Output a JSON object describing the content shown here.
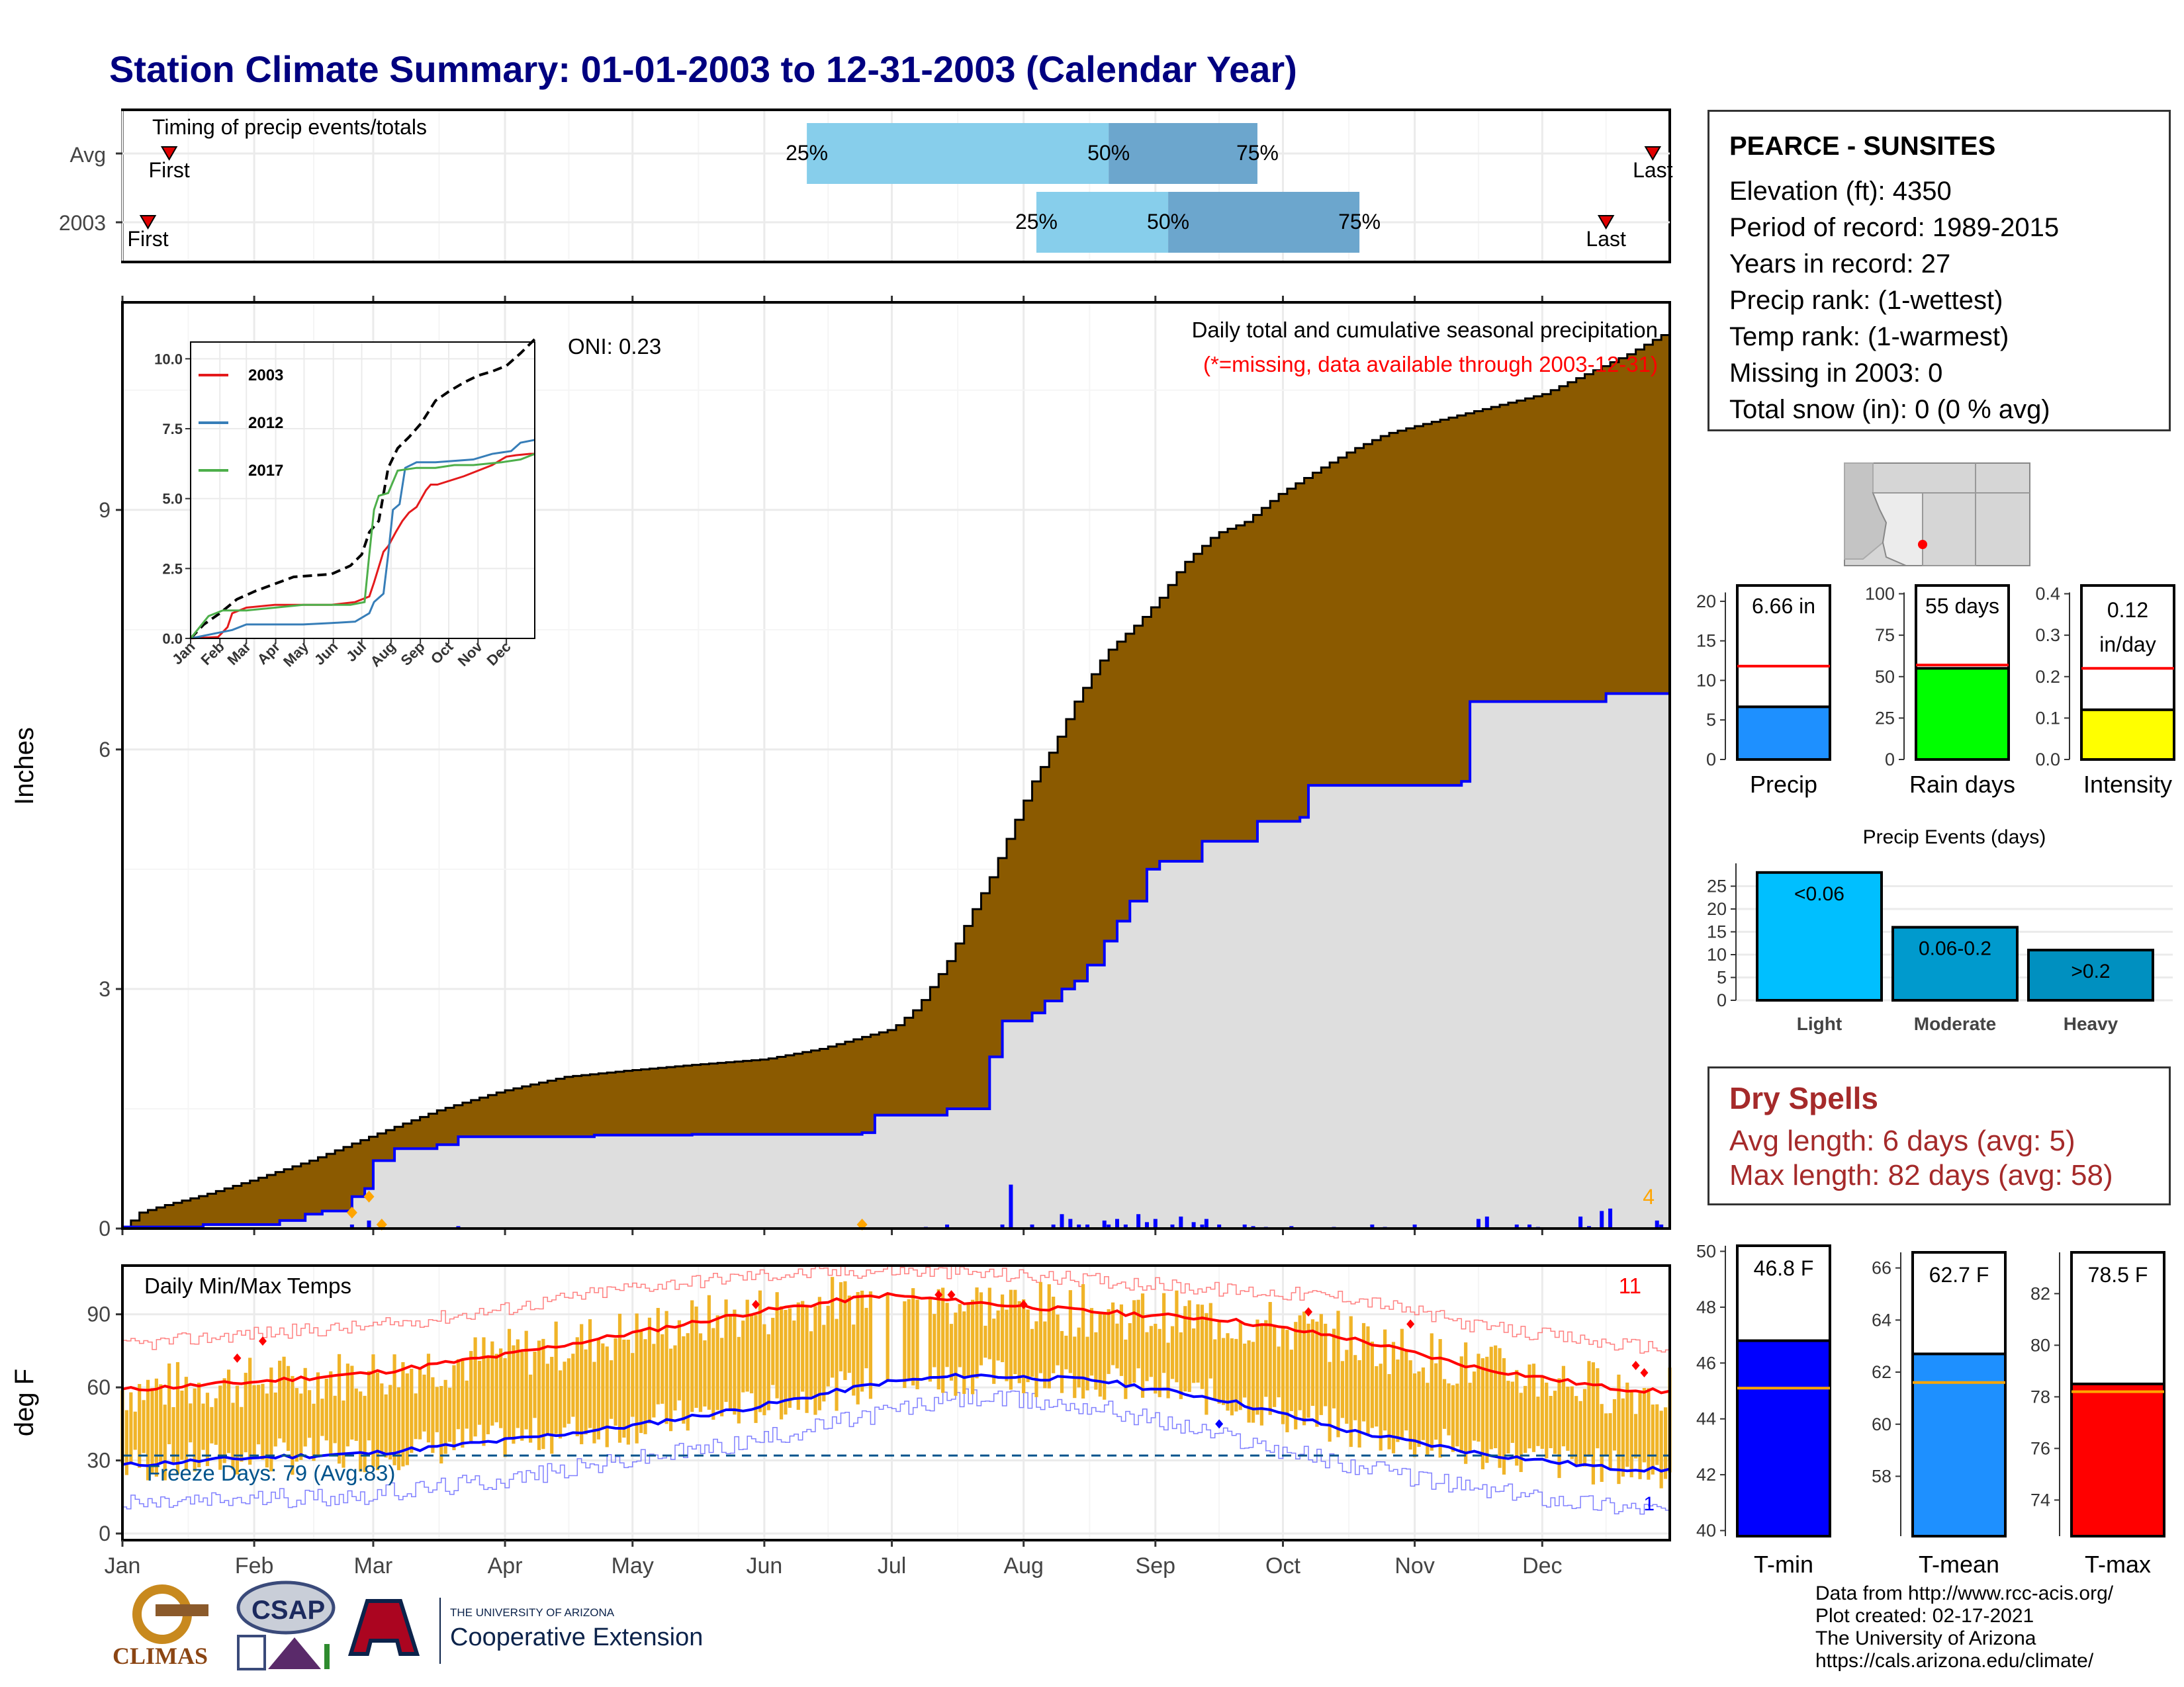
{
  "title": "Station Climate Summary: 01-01-2003 to 12-31-2003 (Calendar Year)",
  "timing_panel": {
    "label": "Timing of precip events/totals",
    "rows": [
      {
        "name": "Avg",
        "first_label": "First",
        "last_label": "Last",
        "first_doy": 12,
        "last_doy": 361,
        "p25_doy": 162,
        "p50_doy": 233,
        "p75_doy": 268,
        "p25_label": "25%",
        "p50_label": "50%",
        "p75_label": "75%"
      },
      {
        "name": "2003",
        "first_label": "First",
        "last_label": "Last",
        "first_doy": 7,
        "last_doy": 350,
        "p25_doy": 216,
        "p50_doy": 247,
        "p75_doy": 292,
        "p25_label": "25%",
        "p50_label": "50%",
        "p75_label": "75%"
      }
    ]
  },
  "precip_panel": {
    "ylabel": "Inches",
    "yticks": [
      0,
      3,
      6,
      9
    ],
    "heading": "Daily total and cumulative seasonal precipitation",
    "missing_note": "(*=missing, data available through 2003-12-31)",
    "oni": "ONI: 0.23",
    "corner_count": "4",
    "colors": {
      "avg_fill": "#8B5A00",
      "year_fill": "#DEDEDE",
      "year_line": "#0000FF",
      "bars": "#0000FF",
      "missing": "#FFA500"
    }
  },
  "inset": {
    "yticks": [
      "0.0",
      "2.5",
      "5.0",
      "7.5",
      "10.0"
    ],
    "months": [
      "Jan",
      "Feb",
      "Mar",
      "Apr",
      "May",
      "Jun",
      "Jul",
      "Aug",
      "Sep",
      "Oct",
      "Nov",
      "Dec"
    ],
    "legend": [
      {
        "name": "2003",
        "color": "#E41A1C"
      },
      {
        "name": "2012",
        "color": "#377EB8"
      },
      {
        "name": "2017",
        "color": "#4DAF4A"
      }
    ]
  },
  "temp_panel": {
    "ylabel": "deg F",
    "heading": "Daily Min/Max Temps",
    "yticks": [
      0,
      30,
      60,
      90
    ],
    "freeze_label": "Freeze Days: 79 (Avg:83)",
    "red_count": "11",
    "blue_count": "1",
    "months": [
      "Jan",
      "Feb",
      "Mar",
      "Apr",
      "May",
      "Jun",
      "Jul",
      "Aug",
      "Sep",
      "Oct",
      "Nov",
      "Dec"
    ]
  },
  "station": {
    "name": "PEARCE - SUNSITES",
    "lines": [
      "Elevation (ft): 4350",
      "Period of record: 1989-2015",
      "Years in record: 27",
      "Precip rank:  (1-wettest)",
      "Temp rank:  (1-warmest)",
      "Missing in 2003: 0",
      "Total snow (in): 0 (0 % avg)"
    ]
  },
  "summary_bars": [
    {
      "label": "Precip",
      "value_text": "6.66 in",
      "value": 6.66,
      "avg": 11.8,
      "max": 22,
      "ticks": [
        0,
        5,
        10,
        15,
        20
      ],
      "color": "#1E90FF"
    },
    {
      "label": "Rain days",
      "value_text": "55 days",
      "value": 55,
      "avg": 57,
      "max": 105,
      "ticks": [
        0,
        25,
        50,
        75,
        100
      ],
      "color": "#00FF00"
    },
    {
      "label": "Intensity",
      "value_text": "0.12 in/day",
      "value": 0.12,
      "avg": 0.22,
      "max": 0.42,
      "ticks": [
        "0.0",
        "0.1",
        "0.2",
        "0.3",
        "0.4"
      ],
      "color": "#FFFF00"
    }
  ],
  "precip_events": {
    "title": "Precip Events (days)",
    "yticks": [
      0,
      5,
      10,
      15,
      20,
      25
    ],
    "categories": [
      "Light",
      "Moderate",
      "Heavy"
    ],
    "bar_labels": [
      "<0.06",
      "0.06-0.2",
      ">0.2"
    ],
    "values": [
      28,
      16,
      11
    ],
    "colors": [
      "#00BFFF",
      "#009ACD",
      "#0090C0"
    ]
  },
  "dry_spells": {
    "title": "Dry Spells",
    "avg_line": "Avg length: 6 days (avg: 5)",
    "max_line": "Max length: 82 days (avg: 58)"
  },
  "temp_bars": [
    {
      "label": "T-min",
      "value_text": "46.8 F",
      "value": 46.8,
      "avg": 45.1,
      "ticks": [
        40,
        42,
        44,
        46,
        48,
        50
      ],
      "min": 39.8,
      "max": 50.2,
      "color": "#0000FF"
    },
    {
      "label": "T-mean",
      "value_text": "62.7 F",
      "value": 62.7,
      "avg": 61.6,
      "ticks": [
        58,
        60,
        62,
        64,
        66
      ],
      "min": 55.7,
      "max": 66.6,
      "color": "#1E90FF"
    },
    {
      "label": "T-max",
      "value_text": "78.5 F",
      "value": 78.5,
      "avg": 78.2,
      "ticks": [
        74,
        76,
        78,
        80,
        82
      ],
      "min": 72.6,
      "max": 83.6,
      "color": "#FF0000"
    }
  ],
  "credits": [
    "Data from http://www.rcc-acis.org/",
    "Plot created: 02-17-2021",
    "The University of Arizona",
    "https://cals.arizona.edu/climate/"
  ],
  "logos": {
    "climas": "CLIMAS",
    "csap": "CSAP",
    "ua_small": "THE UNIVERSITY OF ARIZONA",
    "ua_big": "Cooperative Extension"
  },
  "chart_data": [
    {
      "type": "area",
      "title": "Daily total and cumulative seasonal precipitation",
      "ylabel": "Inches",
      "ylim": [
        0,
        11.6
      ],
      "series": [
        {
          "name": "Avg",
          "x_doy": [
            1,
            5,
            10,
            20,
            31,
            45,
            59,
            75,
            90,
            105,
            120,
            135,
            152,
            165,
            175,
            182,
            188,
            195,
            200,
            205,
            210,
            215,
            220,
            225,
            232,
            240,
            245,
            250,
            258,
            265,
            273,
            282,
            290,
            298,
            305,
            320,
            335,
            345,
            355,
            365
          ],
          "y": [
            0.0,
            0.2,
            0.28,
            0.42,
            0.6,
            0.85,
            1.15,
            1.48,
            1.72,
            1.9,
            1.98,
            2.05,
            2.12,
            2.25,
            2.4,
            2.5,
            2.78,
            3.35,
            3.9,
            4.4,
            5.0,
            5.6,
            6.05,
            6.6,
            7.2,
            7.6,
            7.9,
            8.3,
            8.7,
            8.85,
            9.2,
            9.5,
            9.75,
            9.95,
            10.05,
            10.25,
            10.45,
            10.7,
            10.95,
            11.25
          ]
        },
        {
          "name": "2003",
          "x_doy": [
            1,
            20,
            32,
            38,
            44,
            48,
            55,
            58,
            60,
            65,
            75,
            80,
            112,
            135,
            160,
            175,
            178,
            195,
            205,
            208,
            215,
            218,
            222,
            225,
            228,
            232,
            235,
            238,
            242,
            245,
            255,
            268,
            278,
            280,
            302,
            316,
            318,
            350,
            365
          ],
          "y": [
            0.02,
            0.05,
            0.05,
            0.1,
            0.18,
            0.22,
            0.4,
            0.5,
            0.85,
            1.0,
            1.05,
            1.15,
            1.17,
            1.18,
            1.18,
            1.2,
            1.42,
            1.5,
            2.15,
            2.6,
            2.7,
            2.85,
            3.0,
            3.1,
            3.3,
            3.6,
            3.85,
            4.1,
            4.5,
            4.6,
            4.85,
            5.1,
            5.15,
            5.55,
            5.55,
            5.6,
            6.6,
            6.7,
            6.7
          ]
        }
      ],
      "daily_bars": [
        [
          55,
          0.05
        ],
        [
          59,
          0.1
        ],
        [
          80,
          0.03
        ],
        [
          190,
          0.02
        ],
        [
          195,
          0.05
        ],
        [
          208,
          0.05
        ],
        [
          210,
          0.55
        ],
        [
          215,
          0.05
        ],
        [
          220,
          0.05
        ],
        [
          222,
          0.18
        ],
        [
          224,
          0.12
        ],
        [
          226,
          0.05
        ],
        [
          228,
          0.05
        ],
        [
          232,
          0.1
        ],
        [
          233,
          0.05
        ],
        [
          235,
          0.12
        ],
        [
          237,
          0.05
        ],
        [
          240,
          0.18
        ],
        [
          242,
          0.08
        ],
        [
          244,
          0.12
        ],
        [
          248,
          0.05
        ],
        [
          250,
          0.15
        ],
        [
          253,
          0.08
        ],
        [
          255,
          0.05
        ],
        [
          256,
          0.12
        ],
        [
          259,
          0.05
        ],
        [
          265,
          0.05
        ],
        [
          267,
          0.03
        ],
        [
          270,
          0.02
        ],
        [
          276,
          0.03
        ],
        [
          286,
          0.02
        ],
        [
          295,
          0.05
        ],
        [
          298,
          0.02
        ],
        [
          305,
          0.05
        ],
        [
          320,
          0.12
        ],
        [
          322,
          0.15
        ],
        [
          329,
          0.05
        ],
        [
          332,
          0.05
        ],
        [
          334,
          0.02
        ],
        [
          344,
          0.15
        ],
        [
          346,
          0.03
        ],
        [
          349,
          0.22
        ],
        [
          351,
          0.25
        ],
        [
          362,
          0.1
        ],
        [
          363,
          0.05
        ]
      ]
    },
    {
      "type": "line",
      "title": "",
      "ylim": [
        0,
        10.6
      ],
      "x_months": [
        "Jan",
        "Feb",
        "Mar",
        "Apr",
        "May",
        "Jun",
        "Jul",
        "Aug",
        "Sep",
        "Oct",
        "Nov",
        "Dec"
      ],
      "series": [
        {
          "name": "Avg (dashed)",
          "x_doy": [
            1,
            15,
            32,
            50,
            70,
            90,
            110,
            130,
            150,
            170,
            182,
            190,
            200,
            210,
            220,
            232,
            245,
            260,
            275,
            290,
            305,
            320,
            335,
            350,
            365
          ],
          "y": [
            0.0,
            0.5,
            0.9,
            1.4,
            1.7,
            1.95,
            2.2,
            2.25,
            2.3,
            2.6,
            3.0,
            3.8,
            4.2,
            6.1,
            6.8,
            7.2,
            7.7,
            8.5,
            8.85,
            9.15,
            9.4,
            9.55,
            9.75,
            10.2,
            10.7
          ]
        },
        {
          "name": "2003",
          "x_doy": [
            1,
            30,
            40,
            45,
            60,
            90,
            120,
            150,
            175,
            190,
            195,
            205,
            210,
            218,
            225,
            232,
            240,
            250,
            255,
            262,
            290,
            320,
            335,
            345,
            360,
            365
          ],
          "y": [
            0.0,
            0.05,
            0.4,
            0.9,
            1.1,
            1.2,
            1.2,
            1.2,
            1.3,
            1.5,
            2.0,
            3.1,
            3.3,
            3.8,
            4.2,
            4.5,
            4.7,
            5.3,
            5.5,
            5.5,
            5.8,
            6.2,
            6.5,
            6.55,
            6.6,
            6.6
          ]
        },
        {
          "name": "2012",
          "x_doy": [
            1,
            30,
            45,
            60,
            90,
            120,
            150,
            175,
            190,
            195,
            205,
            210,
            215,
            222,
            228,
            240,
            260,
            280,
            300,
            320,
            340,
            350,
            365
          ],
          "y": [
            0.0,
            0.2,
            0.3,
            0.5,
            0.5,
            0.5,
            0.55,
            0.6,
            0.9,
            1.3,
            1.6,
            3.0,
            4.6,
            4.8,
            6.1,
            6.3,
            6.3,
            6.35,
            6.4,
            6.6,
            6.7,
            7.0,
            7.1
          ]
        },
        {
          "name": "2017",
          "x_doy": [
            1,
            20,
            35,
            60,
            90,
            120,
            150,
            170,
            185,
            190,
            195,
            200,
            210,
            220,
            240,
            260,
            280,
            300,
            330,
            350,
            365
          ],
          "y": [
            0.0,
            0.8,
            1.0,
            1.0,
            1.1,
            1.2,
            1.2,
            1.2,
            1.3,
            3.0,
            4.6,
            5.1,
            5.2,
            6.0,
            6.1,
            6.1,
            6.2,
            6.2,
            6.3,
            6.4,
            6.6
          ]
        }
      ]
    },
    {
      "type": "line",
      "title": "Daily Min/Max Temps",
      "ylabel": "deg F",
      "ylim": [
        0,
        110
      ],
      "freeze_line": 32,
      "normal_max": {
        "x_doy": [
          1,
          30,
          60,
          90,
          120,
          150,
          180,
          200,
          230,
          260,
          290,
          320,
          350,
          365
        ],
        "y": [
          59,
          62,
          66,
          73,
          82,
          91,
          98,
          95,
          91,
          88,
          80,
          68,
          60,
          58
        ]
      },
      "normal_min": {
        "x_doy": [
          1,
          30,
          60,
          90,
          120,
          150,
          180,
          200,
          230,
          260,
          290,
          320,
          350,
          365
        ],
        "y": [
          28,
          31,
          33,
          38,
          44,
          52,
          62,
          65,
          63,
          55,
          42,
          33,
          27,
          26
        ]
      },
      "record_max": {
        "x_doy": [
          1,
          30,
          60,
          90,
          120,
          150,
          180,
          200,
          230,
          260,
          290,
          320,
          350,
          365
        ],
        "y": [
          77,
          82,
          85,
          92,
          101,
          106,
          108,
          107,
          104,
          100,
          97,
          85,
          78,
          76
        ]
      },
      "record_min": {
        "x_doy": [
          1,
          30,
          60,
          90,
          120,
          150,
          180,
          200,
          230,
          260,
          290,
          320,
          350,
          365
        ],
        "y": [
          12,
          14,
          16,
          22,
          30,
          38,
          50,
          56,
          52,
          40,
          28,
          18,
          12,
          10
        ]
      }
    },
    {
      "type": "bar",
      "title": "",
      "categories": [
        "Precip",
        "Rain days",
        "Intensity"
      ],
      "values": [
        6.66,
        55,
        0.12
      ],
      "avg": [
        11.8,
        57,
        0.22
      ]
    },
    {
      "type": "bar",
      "title": "Precip Events (days)",
      "categories": [
        "Light",
        "Moderate",
        "Heavy"
      ],
      "values": [
        28,
        16,
        11
      ]
    },
    {
      "type": "bar",
      "title": "",
      "categories": [
        "T-min",
        "T-mean",
        "T-max"
      ],
      "values": [
        46.8,
        62.7,
        78.5
      ],
      "avg": [
        45.1,
        61.6,
        78.2
      ]
    }
  ]
}
